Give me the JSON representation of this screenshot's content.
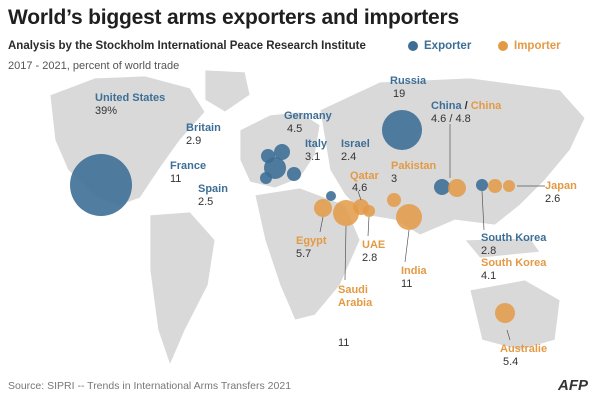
{
  "title": "World’s biggest arms exporters and importers",
  "subtitle": "Analysis by the Stockholm International Peace Research Institute",
  "period": "2017 - 2021, percent of world trade",
  "legend": {
    "exporter": "Exporter",
    "importer": "Importer"
  },
  "colors": {
    "exporter": "#3d6f96",
    "importer": "#e39a45",
    "land": "#d9d9d9"
  },
  "labels": {
    "united_states": {
      "name": "United States",
      "value": "39%"
    },
    "russia": {
      "name": "Russia",
      "value": "19"
    },
    "france": {
      "name": "France",
      "value": "11"
    },
    "china": {
      "name_exp": "China",
      "sep": " / ",
      "name_imp": "China",
      "value": "4.6 / 4.8"
    },
    "germany": {
      "name": "Germany",
      "value": "4.5"
    },
    "italy": {
      "name": "Italy",
      "value": "3.1"
    },
    "britain": {
      "name": "Britain",
      "value": "2.9"
    },
    "spain": {
      "name": "Spain",
      "value": "2.5"
    },
    "israel": {
      "name": "Israel",
      "value": "2.4"
    },
    "south_korea_exp": {
      "name": "South Korea",
      "value": "2.8"
    },
    "qatar": {
      "name": "Qatar",
      "value": "4.6"
    },
    "pakistan": {
      "name": "Pakistan",
      "value": "3"
    },
    "japan": {
      "name": "Japan",
      "value": "2.6"
    },
    "egypt": {
      "name": "Egypt",
      "value": "5.7"
    },
    "uae": {
      "name": "UAE",
      "value": "2.8"
    },
    "india": {
      "name": "India",
      "value": "11"
    },
    "south_korea_imp": {
      "name": "South Korea",
      "value": "4.1"
    },
    "saudi_arabia": {
      "name": "Saudi Arabia",
      "value": "11"
    },
    "australia": {
      "name": "Australie",
      "value": "5.4"
    }
  },
  "source": "Source: SIPRI -- Trends in International Arms Transfers 2021",
  "logo": "AFP"
}
